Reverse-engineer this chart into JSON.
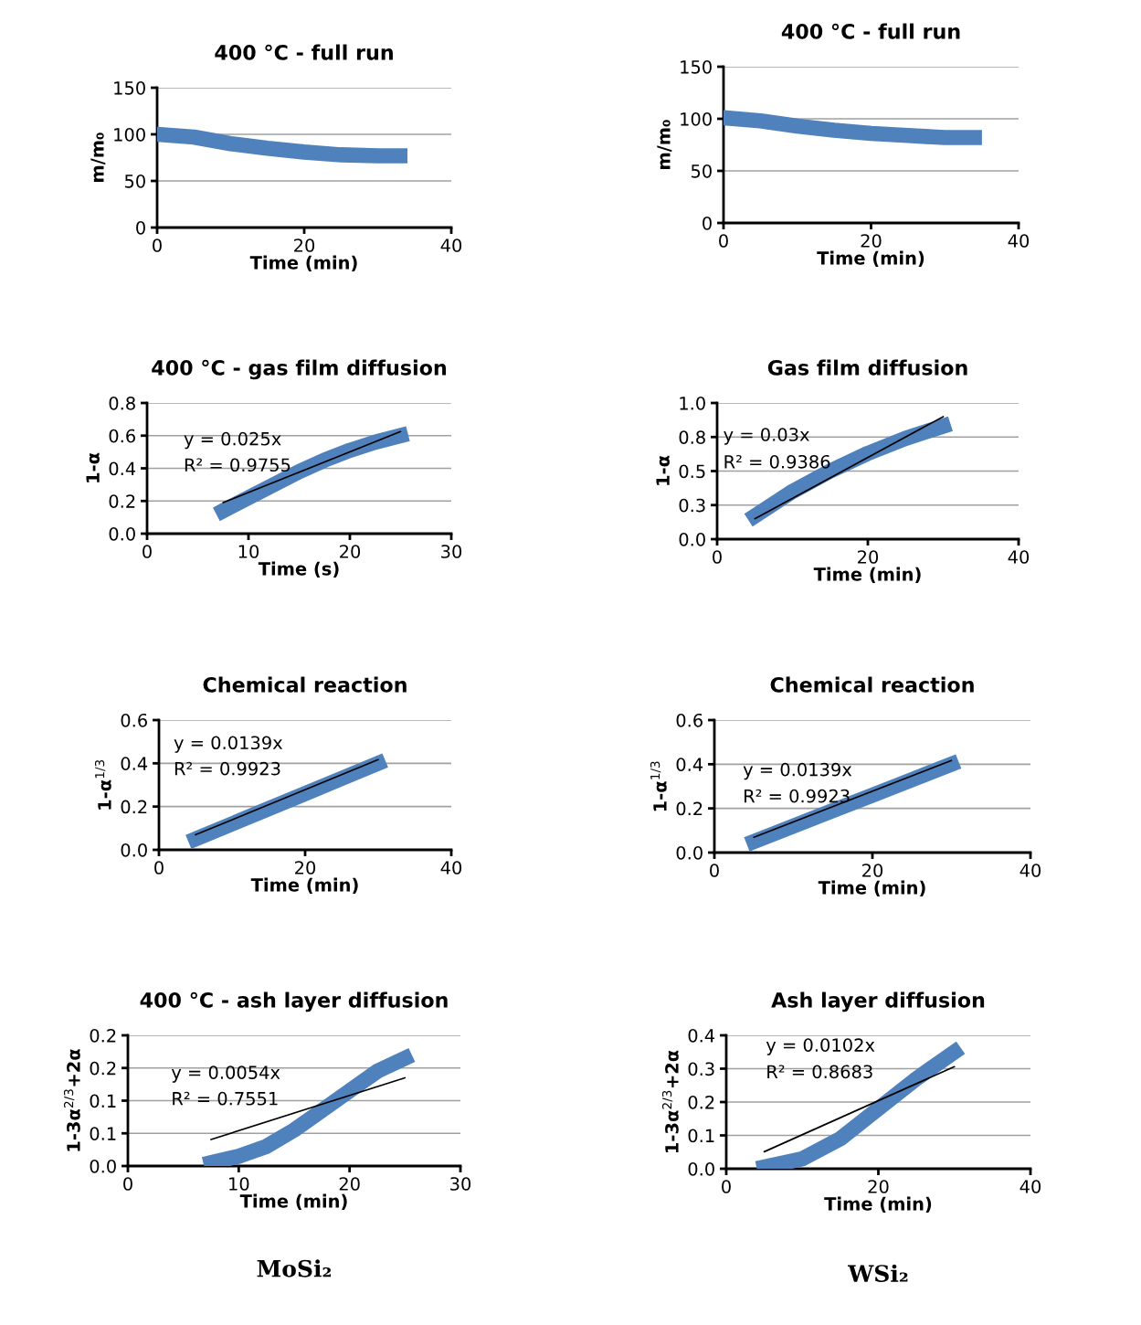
{
  "chart_data": [
    {
      "type": "line",
      "title": "400 °C - full run",
      "xlabel": "Time (min)",
      "ylabel": "m/m₀",
      "xlim": [
        0,
        40
      ],
      "xticks": [
        0,
        20,
        40
      ],
      "ylim": [
        0,
        150
      ],
      "yticks": [
        0,
        50,
        100,
        150
      ],
      "grid": "y",
      "series": [
        {
          "color": "#4f81bd",
          "x": [
            0,
            5,
            10,
            15,
            20,
            25,
            30,
            33
          ],
          "values": [
            100,
            97,
            90,
            85,
            81,
            78,
            77,
            77
          ]
        }
      ]
    },
    {
      "type": "line",
      "title": "400 °C - full run",
      "xlabel": "Time (min)",
      "ylabel": "m/m₀",
      "xlim": [
        0,
        40
      ],
      "xticks": [
        0,
        20,
        40
      ],
      "ylim": [
        0,
        150
      ],
      "yticks": [
        0,
        50,
        100,
        150
      ],
      "grid": "y",
      "series": [
        {
          "color": "#4f81bd",
          "x": [
            0,
            5,
            10,
            15,
            20,
            25,
            30,
            34
          ],
          "values": [
            101,
            98,
            93,
            89,
            86,
            84,
            82,
            82
          ]
        }
      ]
    },
    {
      "type": "line",
      "title": "400 °C - gas film diffusion",
      "xlabel": "Time (s)",
      "ylabel": "1-α",
      "xlim": [
        0,
        30
      ],
      "xticks": [
        0,
        10,
        20,
        30
      ],
      "ylim": [
        0,
        0.8
      ],
      "yticks": [
        {
          "value": 0,
          "label": "0.0"
        },
        0.2,
        0.4,
        0.6,
        0.8
      ],
      "grid": "y",
      "annotations": [
        "y = 0.025x",
        "R² = 0.9755"
      ],
      "series": [
        {
          "color": "#4f81bd",
          "x": [
            7.5,
            10,
            12.5,
            15,
            17.5,
            20,
            22.5,
            25
          ],
          "values": [
            0.14,
            0.22,
            0.3,
            0.38,
            0.45,
            0.51,
            0.56,
            0.6
          ]
        },
        {
          "color": "#000000",
          "x": [
            7.5,
            25
          ],
          "values": [
            0.19,
            0.625
          ]
        }
      ]
    },
    {
      "type": "line",
      "title": "Gas film diffusion",
      "xlabel": "Time (min)",
      "ylabel": "1-α",
      "xlim": [
        0,
        40
      ],
      "xticks": [
        0,
        20,
        40
      ],
      "ylim": [
        0,
        1
      ],
      "yticks": [
        {
          "value": 0,
          "label": "0.0"
        },
        {
          "value": 0.25,
          "label": "0.3"
        },
        {
          "value": 0.5,
          "label": "0.5"
        },
        {
          "value": 0.75,
          "label": "0.8"
        },
        {
          "value": 1,
          "label": "1.0"
        }
      ],
      "grid": "y",
      "annotations": [
        "y = 0.03x",
        "R² = 0.9386"
      ],
      "series": [
        {
          "color": "#4f81bd",
          "x": [
            5,
            10,
            15,
            20,
            25,
            30
          ],
          "values": [
            0.17,
            0.35,
            0.5,
            0.63,
            0.74,
            0.83
          ]
        },
        {
          "color": "#000000",
          "x": [
            5,
            30
          ],
          "values": [
            0.15,
            0.9
          ]
        }
      ]
    },
    {
      "type": "line",
      "title": "Chemical reaction",
      "xlabel": "Time (min)",
      "ylabel": "1-α$^{1/3}$",
      "xlim": [
        0,
        40
      ],
      "xticks": [
        0,
        20,
        40
      ],
      "ylim": [
        0,
        0.6
      ],
      "yticks": [
        {
          "value": 0,
          "label": "0.0"
        },
        0.2,
        0.4,
        0.6
      ],
      "grid": "y",
      "annotations": [
        "y = 0.0139x",
        "R² = 0.9923"
      ],
      "series": [
        {
          "color": "#4f81bd",
          "x": [
            5,
            10,
            15,
            20,
            25,
            30
          ],
          "values": [
            0.05,
            0.12,
            0.19,
            0.26,
            0.33,
            0.4
          ]
        },
        {
          "color": "#000000",
          "x": [
            5,
            30
          ],
          "values": [
            0.0695,
            0.417
          ]
        }
      ]
    },
    {
      "type": "line",
      "title": "Chemical reaction",
      "xlabel": "Time (min)",
      "ylabel": "1-α$^{1/3}$",
      "xlim": [
        0,
        40
      ],
      "xticks": [
        0,
        20,
        40
      ],
      "ylim": [
        0,
        0.6
      ],
      "yticks": [
        {
          "value": 0,
          "label": "0.0"
        },
        0.2,
        0.4,
        0.6
      ],
      "grid": "y",
      "annotations": [
        "y = 0.0139x",
        "R² = 0.9923"
      ],
      "series": [
        {
          "color": "#4f81bd",
          "x": [
            5,
            10,
            15,
            20,
            25,
            30
          ],
          "values": [
            0.05,
            0.12,
            0.19,
            0.26,
            0.33,
            0.4
          ]
        },
        {
          "color": "#000000",
          "x": [
            5,
            30
          ],
          "values": [
            0.0695,
            0.417
          ]
        }
      ]
    },
    {
      "type": "line",
      "title": "400 °C - ash layer diffusion",
      "xlabel": "Time (min)",
      "ylabel": "1-3α$^{2/3}$+2α",
      "xlim": [
        0,
        30
      ],
      "xticks": [
        0,
        10,
        20,
        30
      ],
      "ylim": [
        0,
        0.2
      ],
      "yticks": [
        {
          "value": 0,
          "label": "0.0"
        },
        {
          "value": 0.05,
          "label": "0.1"
        },
        {
          "value": 0.1,
          "label": "0.1"
        },
        {
          "value": 0.15,
          "label": "0.2"
        },
        {
          "value": 0.2,
          "label": "0.2"
        }
      ],
      "grid": "y",
      "annotations": [
        "y = 0.0054x",
        "R² = 0.7551",
        "MoSi₂"
      ],
      "series": [
        {
          "color": "#4f81bd",
          "x": [
            7.5,
            10,
            12.5,
            15,
            17.5,
            20,
            22.5,
            25
          ],
          "values": [
            0.005,
            0.015,
            0.03,
            0.055,
            0.085,
            0.115,
            0.145,
            0.165
          ]
        },
        {
          "color": "#000000",
          "x": [
            7.5,
            25
          ],
          "values": [
            0.0405,
            0.135
          ]
        }
      ]
    },
    {
      "type": "line",
      "title": "Ash layer diffusion",
      "xlabel": "Time (min)",
      "ylabel": "1-3α$^{2/3}$+2α",
      "xlim": [
        0,
        40
      ],
      "xticks": [
        0,
        20,
        40
      ],
      "ylim": [
        0,
        0.4
      ],
      "yticks": [
        {
          "value": 0,
          "label": "0.0"
        },
        0.1,
        0.2,
        0.3,
        0.4
      ],
      "grid": "y",
      "annotations": [
        "y = 0.0102x",
        "R² = 0.8683",
        "WSi₂"
      ],
      "series": [
        {
          "color": "#4f81bd",
          "x": [
            5,
            10,
            15,
            20,
            25,
            30
          ],
          "values": [
            0.005,
            0.03,
            0.09,
            0.18,
            0.27,
            0.35
          ]
        },
        {
          "color": "#000000",
          "x": [
            5,
            30
          ],
          "values": [
            0.051,
            0.306
          ]
        }
      ]
    }
  ]
}
